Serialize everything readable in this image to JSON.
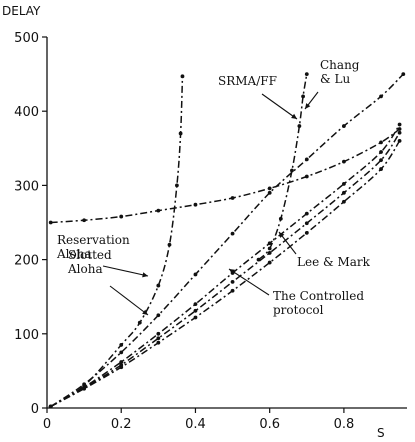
{
  "chart_data": {
    "type": "line",
    "ylabel": "DELAY",
    "xlabel": "S",
    "xlim": [
      0,
      0.97
    ],
    "ylim": [
      0,
      500
    ],
    "xticks": [
      0,
      0.2,
      0.4,
      0.6,
      0.8
    ],
    "xtick_labels": [
      "0",
      "0.2",
      "0.4",
      "0.6",
      "0.8"
    ],
    "yticks": [
      0,
      100,
      200,
      300,
      400,
      500
    ],
    "ytick_labels": [
      "0",
      "100",
      "200",
      "300",
      "400",
      "500"
    ],
    "grid": false,
    "series": [
      {
        "name": "Reservation Aloha",
        "points": [
          [
            0.01,
            250
          ],
          [
            0.1,
            253
          ],
          [
            0.2,
            258
          ],
          [
            0.3,
            266
          ],
          [
            0.4,
            274
          ],
          [
            0.5,
            283
          ],
          [
            0.6,
            296
          ],
          [
            0.7,
            312
          ],
          [
            0.8,
            332
          ],
          [
            0.9,
            358
          ],
          [
            0.95,
            376
          ]
        ]
      },
      {
        "name": "Slotted Aloha",
        "points": [
          [
            0.01,
            2
          ],
          [
            0.1,
            30
          ],
          [
            0.2,
            85
          ],
          [
            0.25,
            115
          ],
          [
            0.3,
            165
          ],
          [
            0.33,
            220
          ],
          [
            0.35,
            300
          ],
          [
            0.36,
            370
          ],
          [
            0.365,
            447
          ]
        ]
      },
      {
        "name": "SRMA/FF",
        "points": [
          [
            0.57,
            200
          ],
          [
            0.6,
            215
          ],
          [
            0.63,
            255
          ],
          [
            0.66,
            320
          ],
          [
            0.68,
            380
          ],
          [
            0.69,
            420
          ],
          [
            0.7,
            450
          ]
        ]
      },
      {
        "name": "Chang & Lu",
        "points": [
          [
            0.01,
            2
          ],
          [
            0.1,
            32
          ],
          [
            0.2,
            75
          ],
          [
            0.3,
            125
          ],
          [
            0.4,
            180
          ],
          [
            0.5,
            235
          ],
          [
            0.6,
            290
          ],
          [
            0.7,
            335
          ],
          [
            0.8,
            380
          ],
          [
            0.9,
            420
          ],
          [
            0.96,
            450
          ]
        ]
      },
      {
        "name": "Lee & Mark",
        "points": [
          [
            0.01,
            2
          ],
          [
            0.1,
            28
          ],
          [
            0.2,
            62
          ],
          [
            0.3,
            100
          ],
          [
            0.4,
            140
          ],
          [
            0.5,
            182
          ],
          [
            0.6,
            222
          ],
          [
            0.7,
            262
          ],
          [
            0.8,
            302
          ],
          [
            0.9,
            345
          ],
          [
            0.95,
            382
          ]
        ]
      },
      {
        "name": "The Controlled protocol",
        "points": [
          [
            0.01,
            2
          ],
          [
            0.1,
            26
          ],
          [
            0.2,
            55
          ],
          [
            0.3,
            88
          ],
          [
            0.4,
            122
          ],
          [
            0.5,
            158
          ],
          [
            0.6,
            196
          ],
          [
            0.7,
            236
          ],
          [
            0.8,
            278
          ],
          [
            0.9,
            322
          ],
          [
            0.95,
            360
          ]
        ]
      },
      {
        "name": "",
        "points": [
          [
            0.01,
            2
          ],
          [
            0.1,
            27
          ],
          [
            0.2,
            58
          ],
          [
            0.3,
            94
          ],
          [
            0.4,
            131
          ],
          [
            0.5,
            170
          ],
          [
            0.6,
            209
          ],
          [
            0.7,
            249
          ],
          [
            0.8,
            290
          ],
          [
            0.9,
            334
          ],
          [
            0.95,
            371
          ]
        ]
      }
    ],
    "annotations": [
      {
        "lines": [
          "Reservation",
          "Aloha"
        ]
      },
      {
        "lines": [
          "Slotted",
          "Aloha"
        ]
      },
      {
        "lines": [
          "SRMA/FF"
        ]
      },
      {
        "lines": [
          "Chang",
          "& Lu"
        ]
      },
      {
        "lines": [
          "Lee & Mark"
        ]
      },
      {
        "lines": [
          "The Controlled",
          "protocol"
        ]
      }
    ]
  }
}
